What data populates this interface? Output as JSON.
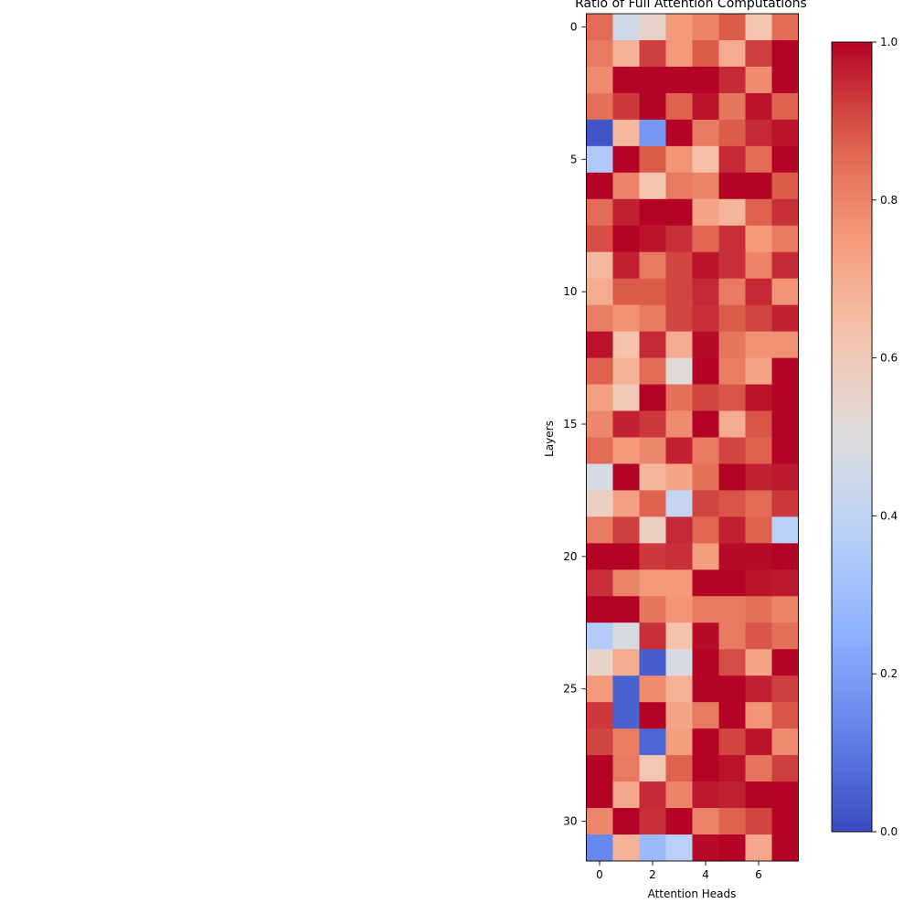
{
  "chart_data": {
    "type": "heatmap",
    "title": "Ratio of Full Attention Computations",
    "xlabel": "Attention Heads",
    "ylabel": "Layers",
    "x_ticks": [
      0,
      2,
      4,
      6
    ],
    "y_ticks": [
      0,
      5,
      10,
      15,
      20,
      25,
      30
    ],
    "n_cols": 8,
    "n_rows": 32,
    "colormap": "coolwarm",
    "vmin": 0.0,
    "vmax": 1.0,
    "colorbar_ticks": [
      "0.0",
      "0.2",
      "0.4",
      "0.6",
      "0.8",
      "1.0"
    ],
    "values": [
      [
        0.85,
        0.45,
        0.55,
        0.75,
        0.8,
        0.88,
        0.62,
        0.85
      ],
      [
        0.82,
        0.68,
        0.92,
        0.75,
        0.88,
        0.7,
        0.92,
        1.0
      ],
      [
        0.78,
        1.0,
        1.0,
        1.0,
        1.0,
        0.95,
        0.78,
        1.0
      ],
      [
        0.84,
        0.93,
        1.0,
        0.87,
        0.98,
        0.83,
        0.98,
        0.87
      ],
      [
        0.02,
        0.66,
        0.18,
        1.0,
        0.82,
        0.88,
        0.95,
        0.98
      ],
      [
        0.35,
        1.0,
        0.88,
        0.76,
        0.64,
        0.95,
        0.85,
        1.0
      ],
      [
        1.0,
        0.8,
        0.62,
        0.82,
        0.8,
        1.0,
        1.0,
        0.88
      ],
      [
        0.85,
        0.96,
        1.0,
        1.0,
        0.72,
        0.67,
        0.87,
        0.94
      ],
      [
        0.9,
        1.0,
        0.98,
        0.94,
        0.86,
        0.94,
        0.75,
        0.82
      ],
      [
        0.66,
        0.96,
        0.82,
        0.91,
        0.98,
        0.94,
        0.8,
        0.95
      ],
      [
        0.7,
        0.88,
        0.88,
        0.91,
        0.95,
        0.82,
        0.95,
        0.76
      ],
      [
        0.81,
        0.77,
        0.82,
        0.91,
        0.94,
        0.88,
        0.91,
        0.96
      ],
      [
        0.98,
        0.63,
        0.95,
        0.7,
        0.99,
        0.83,
        0.77,
        0.77
      ],
      [
        0.87,
        0.68,
        0.85,
        0.52,
        1.0,
        0.81,
        0.72,
        1.0
      ],
      [
        0.73,
        0.6,
        1.0,
        0.84,
        0.91,
        0.89,
        0.98,
        1.0
      ],
      [
        0.79,
        0.96,
        0.93,
        0.78,
        1.0,
        0.7,
        0.89,
        1.0
      ],
      [
        0.85,
        0.75,
        0.79,
        0.96,
        0.82,
        0.91,
        0.87,
        1.0
      ],
      [
        0.47,
        1.0,
        0.67,
        0.72,
        0.84,
        1.0,
        0.96,
        0.97
      ],
      [
        0.57,
        0.73,
        0.87,
        0.42,
        0.91,
        0.89,
        0.85,
        0.93
      ],
      [
        0.82,
        0.92,
        0.57,
        0.95,
        0.86,
        0.96,
        0.87,
        0.38
      ],
      [
        1.0,
        1.0,
        0.93,
        0.94,
        0.74,
        0.99,
        0.99,
        1.0
      ],
      [
        0.94,
        0.8,
        0.75,
        0.75,
        1.0,
        1.0,
        0.98,
        0.97
      ],
      [
        1.0,
        1.0,
        0.83,
        0.76,
        0.82,
        0.82,
        0.84,
        0.8
      ],
      [
        0.36,
        0.48,
        0.94,
        0.63,
        0.99,
        0.82,
        0.89,
        0.84
      ],
      [
        0.55,
        0.7,
        0.04,
        0.48,
        1.0,
        0.9,
        0.72,
        1.0
      ],
      [
        0.75,
        0.05,
        0.78,
        0.68,
        1.0,
        1.0,
        0.96,
        0.92
      ],
      [
        0.93,
        0.05,
        1.0,
        0.72,
        0.82,
        1.0,
        0.76,
        0.89
      ],
      [
        0.91,
        0.81,
        0.06,
        0.74,
        1.0,
        0.91,
        0.98,
        0.78
      ],
      [
        1.0,
        0.82,
        0.61,
        0.87,
        1.0,
        0.98,
        0.83,
        0.92
      ],
      [
        1.0,
        0.71,
        0.95,
        0.8,
        0.97,
        0.96,
        1.0,
        1.0
      ],
      [
        0.79,
        1.0,
        0.94,
        1.0,
        0.8,
        0.87,
        0.91,
        1.0
      ],
      [
        0.14,
        0.68,
        0.29,
        0.38,
        0.99,
        1.0,
        0.71,
        1.0
      ]
    ]
  }
}
